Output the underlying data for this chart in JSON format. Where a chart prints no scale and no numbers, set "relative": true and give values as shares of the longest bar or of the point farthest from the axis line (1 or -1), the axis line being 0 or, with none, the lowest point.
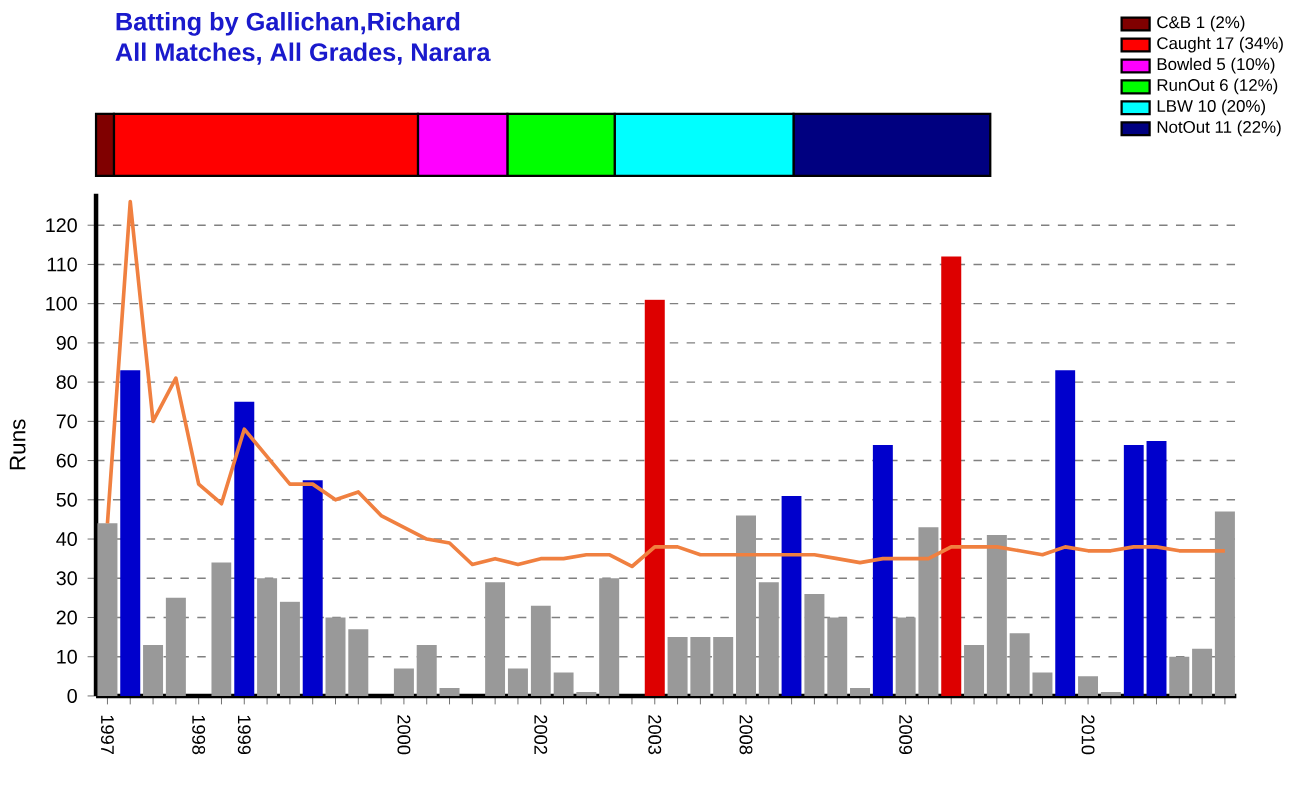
{
  "chart_data": [
    {
      "type": "bar",
      "title": "Batting by Gallichan,Richard",
      "subtitle": "All Matches, All Grades, Narara",
      "orientation": "horizontal",
      "stacked": true,
      "relative": true,
      "legend": "top right",
      "categories": [
        null
      ],
      "series": [
        {
          "name": "C&B 1 (2%)",
          "color": "#800000",
          "values": [
            0.02
          ]
        },
        {
          "name": "Caught 17 (34%)",
          "color": "#ff0000",
          "values": [
            0.34
          ]
        },
        {
          "name": "Bowled 5 (10%)",
          "color": "#ff00ff",
          "values": [
            0.1
          ]
        },
        {
          "name": "RunOut 6 (12%)",
          "color": "#00ff00",
          "values": [
            0.12
          ]
        },
        {
          "name": "LBW 10 (20%)",
          "color": "#00ffff",
          "values": [
            0.2
          ]
        },
        {
          "name": "NotOut 11 (22%)",
          "color": "#000080",
          "values": [
            0.22
          ]
        }
      ]
    },
    {
      "type": "bar",
      "ylabel": "Runs",
      "ylim": [
        0,
        128
      ],
      "yticks": [
        0,
        10,
        20,
        30,
        40,
        50,
        60,
        70,
        80,
        90,
        100,
        110,
        120
      ],
      "grid": "y",
      "categories": [
        "1997",
        null,
        null,
        null,
        "1998",
        null,
        "1999",
        null,
        null,
        null,
        null,
        null,
        null,
        "2000",
        null,
        null,
        null,
        null,
        null,
        "2002",
        null,
        null,
        null,
        null,
        "2003",
        null,
        null,
        null,
        "2008",
        null,
        null,
        null,
        null,
        null,
        null,
        "2009",
        null,
        null,
        null,
        null,
        null,
        null,
        null,
        "2010",
        null,
        null,
        null,
        null,
        null,
        null
      ],
      "series": [
        {
          "values": [
            44,
            83,
            13,
            25,
            0,
            34,
            75,
            30,
            24,
            55,
            20,
            17,
            0,
            7,
            13,
            2,
            0,
            29,
            7,
            23,
            6,
            1,
            30,
            0,
            101,
            15,
            15,
            15,
            46,
            29,
            51,
            26,
            20,
            2,
            64,
            20,
            43,
            112,
            13,
            41,
            16,
            6,
            83,
            5,
            1,
            64,
            65,
            10,
            12,
            47
          ],
          "colors": [
            "#999999",
            "#0000cc",
            "#999999",
            "#999999",
            "#999999",
            "#999999",
            "#0000cc",
            "#999999",
            "#999999",
            "#0000cc",
            "#999999",
            "#999999",
            "#999999",
            "#999999",
            "#999999",
            "#999999",
            "#999999",
            "#999999",
            "#999999",
            "#999999",
            "#999999",
            "#999999",
            "#999999",
            "#999999",
            "#dd0000",
            "#999999",
            "#999999",
            "#999999",
            "#999999",
            "#999999",
            "#0000cc",
            "#999999",
            "#999999",
            "#999999",
            "#0000cc",
            "#999999",
            "#999999",
            "#dd0000",
            "#999999",
            "#999999",
            "#999999",
            "#999999",
            "#0000cc",
            "#999999",
            "#999999",
            "#0000cc",
            "#0000cc",
            "#999999",
            "#999999",
            "#999999"
          ]
        },
        {
          "type": "line",
          "color": "#f08040",
          "values": [
            44,
            126,
            70,
            81,
            54,
            49,
            68,
            61,
            54,
            54,
            50,
            52,
            46,
            43,
            40,
            39,
            33.5,
            35,
            33.5,
            35,
            35,
            36,
            36,
            33,
            38,
            38,
            36,
            36,
            36,
            36,
            36,
            36,
            35,
            34,
            35,
            35,
            35,
            38,
            38,
            38,
            37,
            36,
            38,
            37,
            37,
            38,
            38,
            37,
            37,
            37
          ]
        }
      ]
    }
  ]
}
